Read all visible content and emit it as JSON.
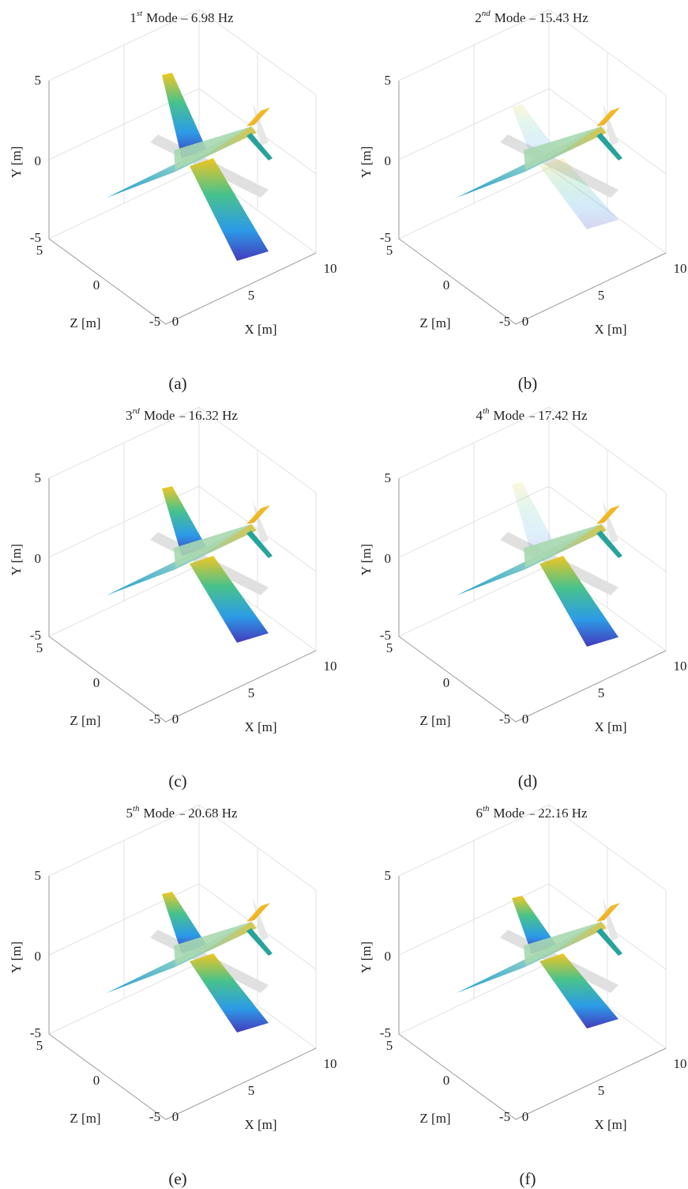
{
  "panels": [
    {
      "ordinal": "1",
      "suffix": "st",
      "title": "Mode – 6.98 Hz",
      "caption": "(a)",
      "y_label": "Y [m]",
      "y_ticks": [
        "5",
        "0",
        "-5"
      ],
      "z_label": "Z [m]",
      "z_ticks": [
        "5",
        "0",
        "-5"
      ],
      "x_label": "X [m]",
      "x_ticks": [
        "0",
        "5",
        "10"
      ]
    },
    {
      "ordinal": "2",
      "suffix": "nd",
      "title": "Mode – 15.43 Hz",
      "caption": "(b)",
      "y_label": "Y [m]",
      "y_ticks": [
        "5",
        "0",
        "-5"
      ],
      "z_label": "Z [m]",
      "z_ticks": [
        "5",
        "0",
        "-5"
      ],
      "x_label": "X [m]",
      "x_ticks": [
        "0",
        "5",
        "10"
      ]
    },
    {
      "ordinal": "3",
      "suffix": "rd",
      "title": "Mode – 16.32 Hz",
      "caption": "(c)",
      "y_label": "Y [m]",
      "y_ticks": [
        "5",
        "0",
        "-5"
      ],
      "z_label": "Z [m]",
      "z_ticks": [
        "5",
        "0",
        "-5"
      ],
      "x_label": "X [m]",
      "x_ticks": [
        "0",
        "5",
        "10"
      ]
    },
    {
      "ordinal": "4",
      "suffix": "th",
      "title": "Mode – 17.42 Hz",
      "caption": "(d)",
      "y_label": "Y [m]",
      "y_ticks": [
        "5",
        "0",
        "-5"
      ],
      "z_label": "Z [m]",
      "z_ticks": [
        "5",
        "0",
        "-5"
      ],
      "x_label": "X [m]",
      "x_ticks": [
        "0",
        "5",
        "10"
      ]
    },
    {
      "ordinal": "5",
      "suffix": "th",
      "title": "Mode – 20.68 Hz",
      "caption": "(e)",
      "y_label": "Y [m]",
      "y_ticks": [
        "5",
        "0",
        "-5"
      ],
      "z_label": "Z [m]",
      "z_ticks": [
        "5",
        "0",
        "-5"
      ],
      "x_label": "X [m]",
      "x_ticks": [
        "0",
        "5",
        "10"
      ]
    },
    {
      "ordinal": "6",
      "suffix": "th",
      "title": "Mode – 22.16 Hz",
      "caption": "(f)",
      "y_label": "Y [m]",
      "y_ticks": [
        "5",
        "0",
        "-5"
      ],
      "z_label": "Z [m]",
      "z_ticks": [
        "5",
        "0",
        "-5"
      ],
      "x_label": "X [m]",
      "x_ticks": [
        "0",
        "5",
        "10"
      ]
    }
  ]
}
